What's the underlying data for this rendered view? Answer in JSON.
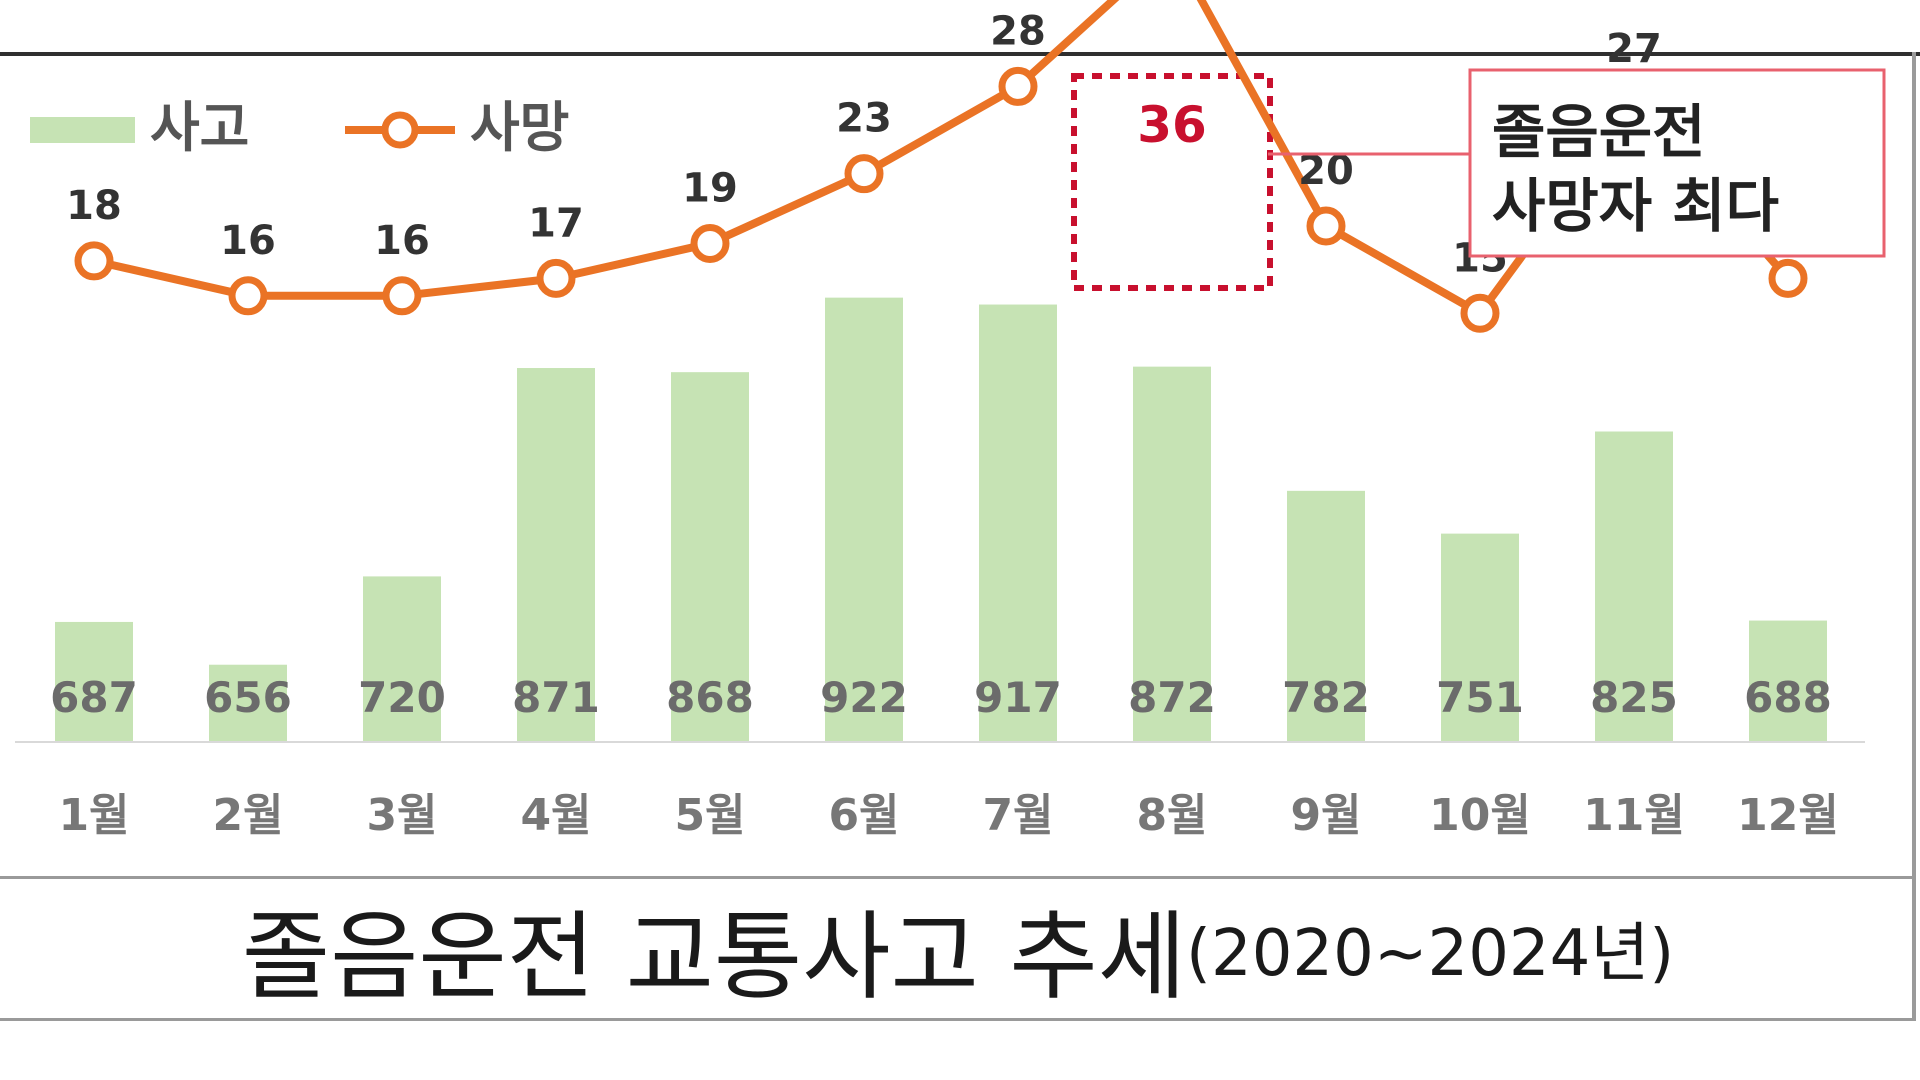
{
  "chart_data": {
    "type": "bar",
    "categories": [
      "1월",
      "2월",
      "3월",
      "4월",
      "5월",
      "6월",
      "7월",
      "8월",
      "9월",
      "10월",
      "11월",
      "12월"
    ],
    "series": [
      {
        "name": "사고",
        "type": "bar",
        "values": [
          687,
          656,
          720,
          871,
          868,
          922,
          917,
          872,
          782,
          751,
          825,
          688
        ],
        "color": "#c6e3b4"
      },
      {
        "name": "사망",
        "type": "line",
        "values": [
          18,
          16,
          16,
          17,
          19,
          23,
          28,
          36,
          20,
          15,
          27,
          17
        ],
        "color": "#ea7325"
      }
    ],
    "highlight": {
      "category": "8월",
      "label_color": "#c8102e"
    },
    "annotation": {
      "line1": "졸음운전",
      "line2": "사망자 최다",
      "border_color": "#e8616e"
    },
    "legend": {
      "position": "top-left"
    },
    "title": "졸음운전 교통사고 추세",
    "title_suffix": "(2020~2024년)"
  }
}
